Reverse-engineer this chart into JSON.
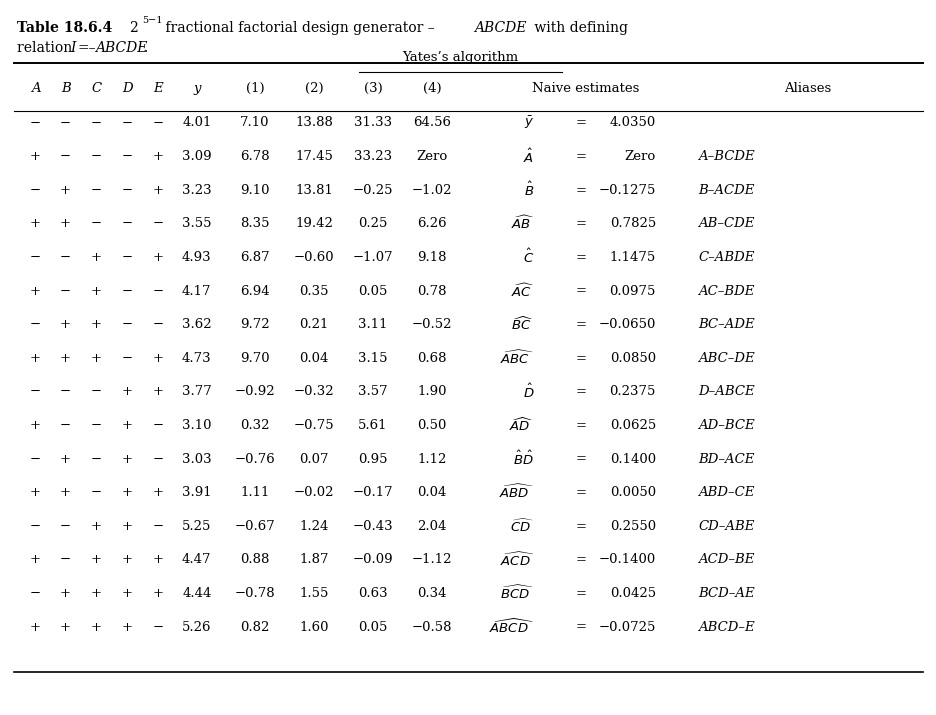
{
  "figsize": [
    9.37,
    7.15
  ],
  "dpi": 100,
  "title1_bold": "Table 18.6.4",
  "title1_normal": "  2",
  "title1_super": "5−1",
  "title1_rest": " fractional factorial design generator – ",
  "title1_italic": "ABCDE",
  "title1_tail": " with defining",
  "title2_normal": "relation ",
  "title2_italic": "I",
  "title2_rest": "=–",
  "title2_italic2": "ABCDE",
  "title2_period": ".",
  "signs": [
    [
      "-",
      "-",
      "-",
      "-",
      "-"
    ],
    [
      "+",
      "-",
      "-",
      "-",
      "+"
    ],
    [
      "-",
      "+",
      "-",
      "-",
      "+"
    ],
    [
      "+",
      "+",
      "-",
      "-",
      "-"
    ],
    [
      "-",
      "-",
      "+",
      "-",
      "+"
    ],
    [
      "+",
      "-",
      "+",
      "-",
      "-"
    ],
    [
      "-",
      "+",
      "+",
      "-",
      "-"
    ],
    [
      "+",
      "+",
      "+",
      "-",
      "+"
    ],
    [
      "-",
      "-",
      "-",
      "+",
      "+"
    ],
    [
      "+",
      "-",
      "-",
      "+",
      "-"
    ],
    [
      "-",
      "+",
      "-",
      "+",
      "-"
    ],
    [
      "+",
      "+",
      "-",
      "+",
      "+"
    ],
    [
      "-",
      "-",
      "+",
      "+",
      "-"
    ],
    [
      "+",
      "-",
      "+",
      "+",
      "+"
    ],
    [
      "-",
      "+",
      "+",
      "+",
      "+"
    ],
    [
      "+",
      "+",
      "+",
      "+",
      "-"
    ]
  ],
  "y_vals": [
    "4.01",
    "3.09",
    "3.23",
    "3.55",
    "4.93",
    "4.17",
    "3.62",
    "4.73",
    "3.77",
    "3.10",
    "3.03",
    "3.91",
    "5.25",
    "4.47",
    "4.44",
    "5.26"
  ],
  "col1": [
    "7.10",
    "6.78",
    "9.10",
    "8.35",
    "6.87",
    "6.94",
    "9.72",
    "9.70",
    "−0.92",
    "0.32",
    "−0.76",
    "1.11",
    "−0.67",
    "0.88",
    "−0.78",
    "0.82"
  ],
  "col2": [
    "13.88",
    "17.45",
    "13.81",
    "19.42",
    "−0.60",
    "0.35",
    "0.21",
    "0.04",
    "−0.32",
    "−0.75",
    "0.07",
    "−0.02",
    "1.24",
    "1.87",
    "1.55",
    "1.60"
  ],
  "col3": [
    "31.33",
    "33.23",
    "−0.25",
    "0.25",
    "−1.07",
    "0.05",
    "3.11",
    "3.15",
    "3.57",
    "5.61",
    "0.95",
    "−0.17",
    "−0.43",
    "−0.09",
    "0.63",
    "0.05"
  ],
  "col4": [
    "64.56",
    "Zero",
    "−1.02",
    "6.26",
    "9.18",
    "0.78",
    "−0.52",
    "0.68",
    "1.90",
    "0.50",
    "1.12",
    "0.04",
    "2.04",
    "−1.12",
    "0.34",
    "−0.58"
  ],
  "naive_sym": [
    "$\\bar{y}$",
    "$\\hat{A}$",
    "$\\hat{B}$",
    "$\\widehat{AB}$",
    "$\\hat{C}$",
    "$\\widehat{AC}$",
    "$\\widehat{BC}$",
    "$\\widehat{ABC}$",
    "$\\hat{D}$",
    "$\\widehat{AD}$",
    "$\\hat{B}\\hat{D}$",
    "$\\widehat{ABD}$",
    "$\\widehat{CD}$",
    "$\\widehat{ACD}$",
    "$\\widehat{BCD}$",
    "$\\widehat{ABCD}$"
  ],
  "naive_val": [
    "4.0350",
    "Zero",
    "−0.1275",
    "0.7825",
    "1.1475",
    "0.0975",
    "−0.0650",
    "0.0850",
    "0.2375",
    "0.0625",
    "0.1400",
    "0.0050",
    "0.2550",
    "−0.1400",
    "0.0425",
    "−0.0725"
  ],
  "aliases": [
    "",
    "A–BCDE",
    "B–ACDE",
    "AB–CDE",
    "C–ABDE",
    "AC–BDE",
    "BC–ADE",
    "ABC–DE",
    "D–ABCE",
    "AD–BCE",
    "BD–ACE",
    "ABD–CE",
    "CD–ABE",
    "ACD–BE",
    "BCD–AE",
    "ABCD–E"
  ]
}
